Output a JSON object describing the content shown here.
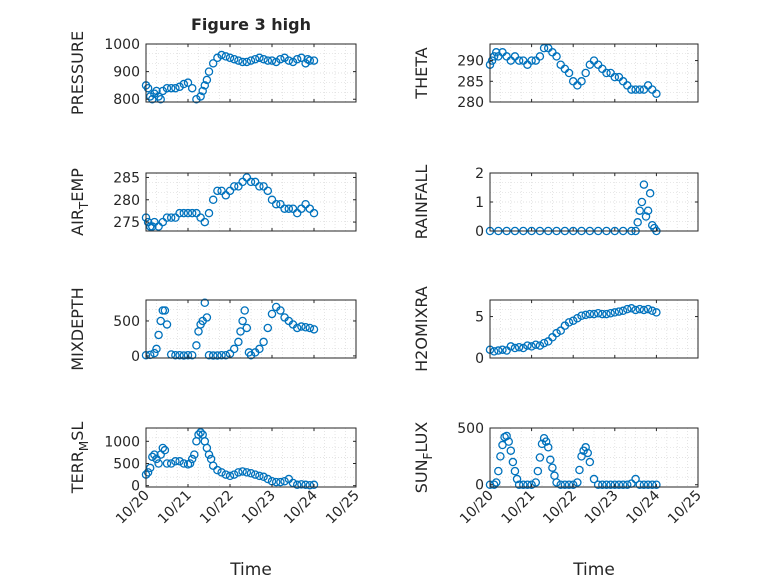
{
  "figure": {
    "title": "Figure 3 high",
    "marker_color": "#0072bd",
    "axis_color": "#262626",
    "grid_color": "#d9d9d9"
  },
  "chart_data": [
    {
      "type": "scatter",
      "id": "pressure",
      "title": "Figure 3 high",
      "ylabel": "PRESSURE",
      "ylim": [
        790,
        1000
      ],
      "yticks": [
        800,
        900,
        1000
      ],
      "xlim": [
        0,
        5
      ],
      "xticks": [
        0,
        1,
        2,
        3,
        4,
        5
      ],
      "xticklabels": [],
      "xlabel": "",
      "grid": true,
      "x": [
        0.0,
        0.05,
        0.1,
        0.15,
        0.2,
        0.25,
        0.3,
        0.35,
        0.4,
        0.5,
        0.6,
        0.7,
        0.8,
        0.9,
        1.0,
        1.1,
        1.2,
        1.3,
        1.35,
        1.4,
        1.45,
        1.5,
        1.6,
        1.7,
        1.8,
        1.9,
        2.0,
        2.1,
        2.2,
        2.3,
        2.4,
        2.5,
        2.6,
        2.7,
        2.8,
        2.9,
        3.0,
        3.1,
        3.2,
        3.3,
        3.4,
        3.5,
        3.6,
        3.7,
        3.8,
        3.85,
        3.9,
        4.0
      ],
      "values": [
        850,
        840,
        810,
        800,
        820,
        830,
        810,
        800,
        830,
        840,
        840,
        840,
        845,
        855,
        860,
        840,
        800,
        810,
        830,
        850,
        870,
        900,
        930,
        950,
        960,
        955,
        950,
        945,
        940,
        935,
        935,
        940,
        945,
        950,
        945,
        940,
        940,
        935,
        945,
        950,
        940,
        935,
        945,
        950,
        930,
        945,
        940,
        940
      ]
    },
    {
      "type": "scatter",
      "id": "theta",
      "ylabel": "THETA",
      "ylim": [
        280,
        294
      ],
      "yticks": [
        280,
        285,
        290
      ],
      "xlim": [
        0,
        5
      ],
      "xticks": [
        0,
        1,
        2,
        3,
        4,
        5
      ],
      "xticklabels": [],
      "xlabel": "",
      "grid": true,
      "x": [
        0.0,
        0.05,
        0.1,
        0.15,
        0.2,
        0.3,
        0.4,
        0.5,
        0.6,
        0.7,
        0.8,
        0.9,
        1.0,
        1.1,
        1.2,
        1.3,
        1.4,
        1.5,
        1.6,
        1.7,
        1.8,
        1.9,
        2.0,
        2.1,
        2.2,
        2.3,
        2.4,
        2.5,
        2.6,
        2.7,
        2.8,
        2.9,
        3.0,
        3.1,
        3.2,
        3.3,
        3.4,
        3.5,
        3.6,
        3.7,
        3.8,
        3.9,
        4.0
      ],
      "values": [
        289,
        290,
        291,
        292,
        291,
        292,
        291,
        290,
        291,
        290,
        290,
        289,
        290,
        290,
        291,
        293,
        293,
        292,
        291,
        289,
        288,
        287,
        285,
        284,
        285,
        287,
        289,
        290,
        289,
        288,
        287,
        287,
        286,
        286,
        285,
        284,
        283,
        283,
        283,
        283,
        284,
        283,
        282
      ]
    },
    {
      "type": "scatter",
      "id": "air_temp",
      "ylabel": "AIR_TEMP",
      "ylim": [
        273,
        286
      ],
      "yticks": [
        275,
        280,
        285
      ],
      "xlim": [
        0,
        5
      ],
      "xticks": [
        0,
        1,
        2,
        3,
        4,
        5
      ],
      "xticklabels": [],
      "xlabel": "",
      "grid": true,
      "x": [
        0.0,
        0.05,
        0.1,
        0.15,
        0.2,
        0.3,
        0.4,
        0.5,
        0.6,
        0.7,
        0.8,
        0.9,
        1.0,
        1.1,
        1.2,
        1.3,
        1.4,
        1.5,
        1.6,
        1.7,
        1.8,
        1.9,
        2.0,
        2.1,
        2.2,
        2.3,
        2.4,
        2.5,
        2.6,
        2.7,
        2.8,
        2.9,
        3.0,
        3.1,
        3.2,
        3.3,
        3.4,
        3.5,
        3.6,
        3.7,
        3.8,
        3.9,
        4.0
      ],
      "values": [
        276,
        275,
        274,
        274,
        275,
        274,
        275,
        276,
        276,
        276,
        277,
        277,
        277,
        277,
        277,
        276,
        275,
        277,
        280,
        282,
        282,
        281,
        282,
        283,
        283,
        284,
        285,
        284,
        284,
        283,
        283,
        282,
        280,
        279,
        279,
        278,
        278,
        278,
        277,
        278,
        279,
        278,
        277
      ]
    },
    {
      "type": "scatter",
      "id": "rainfall",
      "ylabel": "RAINFALL",
      "ylim": [
        0,
        2
      ],
      "yticks": [
        0,
        1,
        2
      ],
      "xlim": [
        0,
        5
      ],
      "xticks": [
        0,
        1,
        2,
        3,
        4,
        5
      ],
      "xticklabels": [],
      "xlabel": "",
      "grid": true,
      "x": [
        0.0,
        0.2,
        0.4,
        0.6,
        0.8,
        1.0,
        1.2,
        1.4,
        1.6,
        1.8,
        2.0,
        2.2,
        2.4,
        2.6,
        2.8,
        3.0,
        3.2,
        3.4,
        3.5,
        3.55,
        3.6,
        3.65,
        3.7,
        3.75,
        3.8,
        3.85,
        3.9,
        3.95,
        4.0
      ],
      "values": [
        0,
        0,
        0,
        0,
        0,
        0,
        0,
        0,
        0,
        0,
        0,
        0,
        0,
        0,
        0,
        0,
        0,
        0,
        0,
        0.3,
        0.7,
        1.0,
        1.6,
        0.5,
        0.7,
        1.3,
        0.2,
        0.1,
        0
      ]
    },
    {
      "type": "scatter",
      "id": "mixdepth",
      "ylabel": "MIXDEPTH",
      "ylim": [
        -30,
        800
      ],
      "yticks": [
        0,
        500
      ],
      "xlim": [
        0,
        5
      ],
      "xticks": [
        0,
        1,
        2,
        3,
        4,
        5
      ],
      "xticklabels": [],
      "xlabel": "",
      "grid": true,
      "x": [
        0.0,
        0.1,
        0.2,
        0.25,
        0.3,
        0.35,
        0.4,
        0.45,
        0.5,
        0.6,
        0.7,
        0.8,
        0.9,
        1.0,
        1.1,
        1.2,
        1.25,
        1.3,
        1.35,
        1.4,
        1.45,
        1.5,
        1.6,
        1.7,
        1.8,
        1.9,
        2.0,
        2.1,
        2.2,
        2.25,
        2.3,
        2.35,
        2.4,
        2.45,
        2.5,
        2.6,
        2.7,
        2.8,
        2.9,
        3.0,
        3.1,
        3.2,
        3.3,
        3.4,
        3.5,
        3.6,
        3.7,
        3.8,
        3.9,
        4.0
      ],
      "values": [
        10,
        15,
        40,
        100,
        300,
        500,
        650,
        650,
        450,
        20,
        10,
        10,
        5,
        10,
        10,
        150,
        350,
        450,
        500,
        760,
        550,
        10,
        5,
        5,
        10,
        10,
        30,
        100,
        200,
        350,
        500,
        650,
        400,
        50,
        10,
        50,
        100,
        200,
        400,
        600,
        700,
        650,
        550,
        500,
        450,
        400,
        420,
        410,
        400,
        380
      ]
    },
    {
      "type": "scatter",
      "id": "h2omixra",
      "ylabel": "H2OMIXRA",
      "ylim": [
        0,
        7
      ],
      "yticks": [
        0,
        5
      ],
      "xlim": [
        0,
        5
      ],
      "xticks": [
        0,
        1,
        2,
        3,
        4,
        5
      ],
      "xticklabels": [],
      "xlabel": "",
      "grid": true,
      "x": [
        0.0,
        0.1,
        0.2,
        0.3,
        0.4,
        0.5,
        0.6,
        0.7,
        0.8,
        0.9,
        1.0,
        1.1,
        1.2,
        1.3,
        1.4,
        1.5,
        1.6,
        1.7,
        1.8,
        1.9,
        2.0,
        2.1,
        2.2,
        2.3,
        2.4,
        2.5,
        2.6,
        2.7,
        2.8,
        2.9,
        3.0,
        3.1,
        3.2,
        3.3,
        3.4,
        3.5,
        3.6,
        3.7,
        3.8,
        3.9,
        4.0
      ],
      "values": [
        1.0,
        0.8,
        0.9,
        1.0,
        0.9,
        1.4,
        1.2,
        1.3,
        1.2,
        1.5,
        1.4,
        1.6,
        1.5,
        1.8,
        2.0,
        2.5,
        3.0,
        3.3,
        3.9,
        4.3,
        4.5,
        4.8,
        5.1,
        5.2,
        5.3,
        5.3,
        5.4,
        5.3,
        5.3,
        5.4,
        5.5,
        5.6,
        5.7,
        5.9,
        6.0,
        5.8,
        5.9,
        5.8,
        5.9,
        5.7,
        5.5
      ]
    },
    {
      "type": "scatter",
      "id": "terr_msl",
      "ylabel": "TERR_MSL",
      "ylim": [
        -30,
        1300
      ],
      "yticks": [
        0,
        500,
        1000
      ],
      "xlim": [
        0,
        5
      ],
      "xticks": [
        0,
        1,
        2,
        3,
        4,
        5
      ],
      "xticklabels": [
        "10/20",
        "10/21",
        "10/22",
        "10/23",
        "10/24",
        "10/25"
      ],
      "xlabel": "Time",
      "grid": true,
      "x": [
        0.0,
        0.05,
        0.1,
        0.15,
        0.2,
        0.25,
        0.3,
        0.35,
        0.4,
        0.45,
        0.5,
        0.6,
        0.7,
        0.8,
        0.9,
        1.0,
        1.05,
        1.1,
        1.15,
        1.2,
        1.25,
        1.3,
        1.35,
        1.4,
        1.45,
        1.5,
        1.55,
        1.6,
        1.7,
        1.8,
        1.9,
        2.0,
        2.1,
        2.2,
        2.3,
        2.4,
        2.5,
        2.6,
        2.7,
        2.8,
        2.9,
        3.0,
        3.1,
        3.2,
        3.3,
        3.4,
        3.5,
        3.6,
        3.7,
        3.8,
        3.9,
        4.0
      ],
      "values": [
        250,
        300,
        400,
        650,
        700,
        600,
        500,
        700,
        850,
        800,
        500,
        500,
        550,
        550,
        500,
        480,
        500,
        600,
        700,
        1000,
        1150,
        1200,
        1150,
        1000,
        850,
        700,
        600,
        450,
        350,
        300,
        250,
        220,
        250,
        300,
        320,
        300,
        280,
        250,
        220,
        200,
        150,
        100,
        80,
        80,
        100,
        150,
        60,
        20,
        30,
        20,
        10,
        20
      ]
    },
    {
      "type": "scatter",
      "id": "sun_flux",
      "ylabel": "SUN_FLUX",
      "ylim": [
        -20,
        500
      ],
      "yticks": [
        0,
        500
      ],
      "xlim": [
        0,
        5
      ],
      "xticks": [
        0,
        1,
        2,
        3,
        4,
        5
      ],
      "xticklabels": [
        "10/20",
        "10/21",
        "10/22",
        "10/23",
        "10/24",
        "10/25"
      ],
      "xlabel": "Time",
      "grid": true,
      "x": [
        0.0,
        0.1,
        0.15,
        0.2,
        0.25,
        0.3,
        0.35,
        0.4,
        0.45,
        0.5,
        0.55,
        0.6,
        0.65,
        0.7,
        0.8,
        0.9,
        1.0,
        1.1,
        1.15,
        1.2,
        1.25,
        1.3,
        1.35,
        1.4,
        1.45,
        1.5,
        1.55,
        1.6,
        1.7,
        1.8,
        1.9,
        2.0,
        2.1,
        2.15,
        2.2,
        2.25,
        2.3,
        2.35,
        2.4,
        2.5,
        2.6,
        2.7,
        2.8,
        2.9,
        3.0,
        3.1,
        3.2,
        3.3,
        3.4,
        3.5,
        3.6,
        3.7,
        3.8,
        3.9,
        4.0
      ],
      "values": [
        0,
        0,
        20,
        120,
        250,
        350,
        420,
        430,
        380,
        300,
        200,
        120,
        50,
        0,
        0,
        0,
        0,
        20,
        120,
        240,
        360,
        410,
        380,
        330,
        220,
        150,
        80,
        20,
        0,
        0,
        0,
        0,
        20,
        130,
        250,
        300,
        330,
        280,
        200,
        50,
        0,
        0,
        0,
        0,
        0,
        0,
        0,
        0,
        10,
        50,
        0,
        0,
        0,
        0,
        0
      ]
    }
  ]
}
